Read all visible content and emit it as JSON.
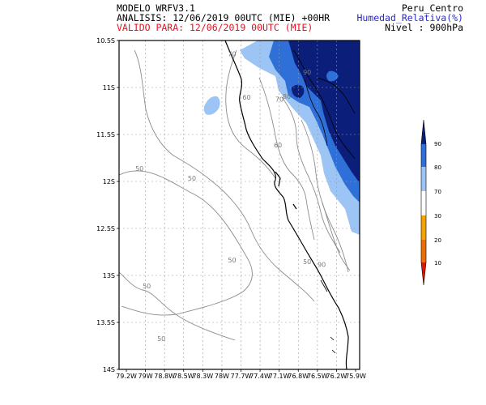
{
  "header": {
    "model": "MODELO WRFV3.1",
    "analysis": "ANALISIS: 12/06/2019 00UTC (MIE) +00HR",
    "valid": "VALIDO PARA: 12/06/2019 00UTC (MIE)",
    "domain": "Peru_Centro",
    "variable": "Humedad_Relativa(%)",
    "level": "Nivel : 900hPa"
  },
  "colors": {
    "valid_text": "#e8101c",
    "variable_text": "#2828c8",
    "frame": "#000000",
    "grid": "#9a9a9a",
    "contour": "#8c8c8c",
    "coast": "#000000"
  },
  "map": {
    "lon_range": [
      -79.2,
      -75.9
    ],
    "lat_range": [
      -14.0,
      -10.5
    ],
    "lat_ticks": [
      "10.5S",
      "11S",
      "11.5S",
      "12S",
      "12.5S",
      "13S",
      "13.5S",
      "14S"
    ],
    "lon_ticks": [
      "79.2W",
      "79W",
      "78.8W",
      "78.5W",
      "78.3W",
      "78W",
      "77.7W",
      "77.4W",
      "77.1W",
      "76.8W",
      "76.5W",
      "76.2W",
      "75.9W"
    ],
    "contour_labels": [
      {
        "text": "70",
        "lon": -77.65,
        "lat": -10.67
      },
      {
        "text": "60",
        "lon": -77.45,
        "lat": -11.13
      },
      {
        "text": "80",
        "lon": -76.9,
        "lat": -11.12
      },
      {
        "text": "70",
        "lon": -77.0,
        "lat": -11.15
      },
      {
        "text": "60",
        "lon": -77.02,
        "lat": -11.64
      },
      {
        "text": "50",
        "lon": -78.92,
        "lat": -11.89
      },
      {
        "text": "50",
        "lon": -78.2,
        "lat": -11.99
      },
      {
        "text": "90",
        "lon": -76.62,
        "lat": -10.86
      },
      {
        "text": "50",
        "lon": -77.65,
        "lat": -12.86
      },
      {
        "text": "50",
        "lon": -76.62,
        "lat": -12.88
      },
      {
        "text": "90",
        "lon": -76.42,
        "lat": -12.91
      },
      {
        "text": "50",
        "lon": -78.82,
        "lat": -13.14
      },
      {
        "text": "50",
        "lon": -78.62,
        "lat": -13.7
      }
    ],
    "wet_levels": [
      "70",
      "80",
      "90"
    ]
  },
  "colorbar": {
    "labels": [
      "90",
      "80",
      "70",
      "30",
      "20",
      "10"
    ],
    "segment_colors": [
      "#0a1e7a",
      "#2f6fd8",
      "#9cc4f4",
      "#ffffff",
      "#f4a200",
      "#ec6e00",
      "#e01500"
    ]
  }
}
